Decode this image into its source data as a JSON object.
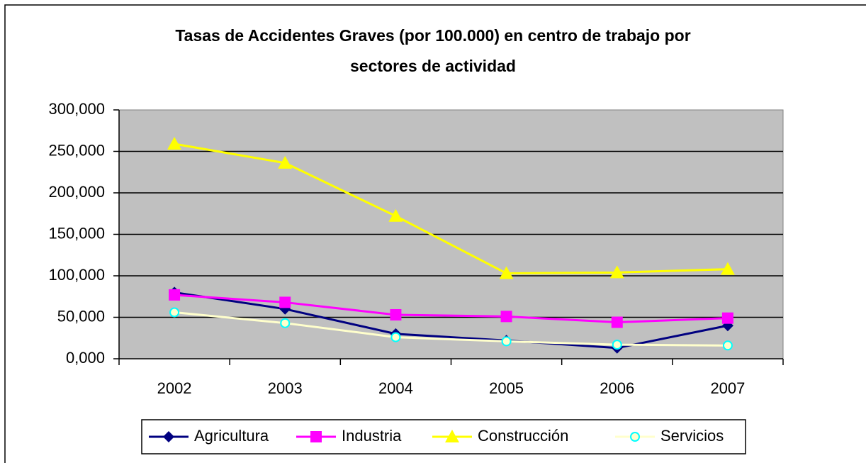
{
  "chart_data": {
    "type": "line",
    "title": "Tasas de Accidentes Graves (por 100.000) en centro de trabajo por sectores de actividad",
    "categories": [
      "2002",
      "2003",
      "2004",
      "2005",
      "2006",
      "2007"
    ],
    "series": [
      {
        "name": "Agricultura",
        "color": "#000080",
        "marker": "diamond",
        "values": [
          80,
          60,
          30,
          22,
          13,
          40
        ]
      },
      {
        "name": "Industria",
        "color": "#ff00ff",
        "marker": "square",
        "values": [
          77,
          68,
          53,
          51,
          44,
          49
        ]
      },
      {
        "name": "Construcción",
        "color": "#ffff00",
        "marker": "triangle",
        "values": [
          259,
          236,
          172,
          103,
          104,
          108
        ]
      },
      {
        "name": "Servicios",
        "color": "#ffffcc",
        "marker": "circle",
        "values": [
          56,
          43,
          26,
          21,
          17,
          16
        ]
      }
    ],
    "ylim": [
      0,
      300
    ],
    "yticks": [
      {
        "value": 0,
        "label": "0,000"
      },
      {
        "value": 50,
        "label": "50,000"
      },
      {
        "value": 100,
        "label": "100,000"
      },
      {
        "value": 150,
        "label": "150,000"
      },
      {
        "value": 200,
        "label": "200,000"
      },
      {
        "value": 250,
        "label": "250,000"
      },
      {
        "value": 300,
        "label": "300,000"
      }
    ],
    "grid": true,
    "legend": "bottom"
  }
}
